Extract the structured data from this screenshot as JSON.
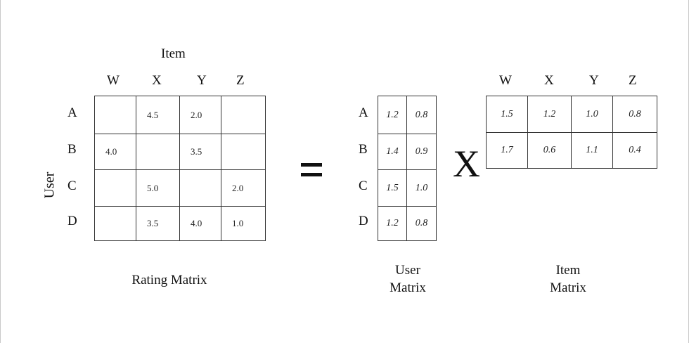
{
  "rating_matrix": {
    "title": "Item",
    "columns": [
      "W",
      "X",
      "Y",
      "Z"
    ],
    "row_axis_label": "User",
    "rows": [
      "A",
      "B",
      "C",
      "D"
    ],
    "cells": [
      [
        "",
        "4.5",
        "2.0",
        ""
      ],
      [
        "4.0",
        "",
        "3.5",
        ""
      ],
      [
        "",
        "5.0",
        "",
        "2.0"
      ],
      [
        "",
        "3.5",
        "4.0",
        "1.0"
      ]
    ],
    "caption": "Rating Matrix"
  },
  "equals_symbol": "=",
  "times_symbol": "X",
  "user_matrix": {
    "rows": [
      "A",
      "B",
      "C",
      "D"
    ],
    "cells": [
      [
        "1.2",
        "0.8"
      ],
      [
        "1.4",
        "0.9"
      ],
      [
        "1.5",
        "1.0"
      ],
      [
        "1.2",
        "0.8"
      ]
    ],
    "caption_line1": "User",
    "caption_line2": "Matrix"
  },
  "item_matrix": {
    "columns": [
      "W",
      "X",
      "Y",
      "Z"
    ],
    "cells": [
      [
        "1.5",
        "1.2",
        "1.0",
        "0.8"
      ],
      [
        "1.7",
        "0.6",
        "1.1",
        "0.4"
      ]
    ],
    "caption_line1": "Item",
    "caption_line2": "Matrix"
  }
}
